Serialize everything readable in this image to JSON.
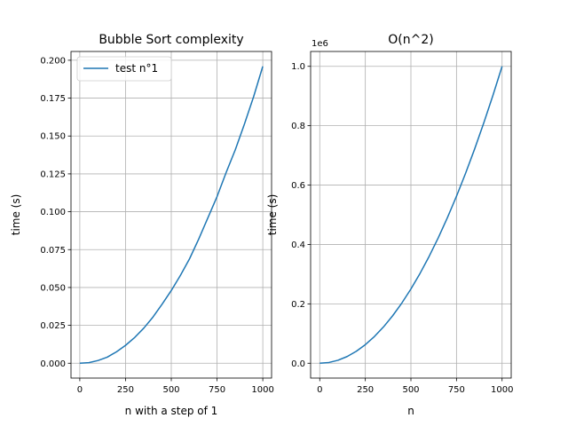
{
  "chart_data": [
    {
      "type": "line",
      "title": "Bubble Sort complexity",
      "xlabel": "n with a step of 1",
      "ylabel": "time (s)",
      "xlim": [
        -48,
        1048
      ],
      "ylim": [
        -0.0098,
        0.2058
      ],
      "xticks": [
        0,
        250,
        500,
        750,
        1000
      ],
      "xtick_labels": [
        "0",
        "250",
        "500",
        "750",
        "1000"
      ],
      "yticks": [
        0,
        0.025,
        0.05,
        0.075,
        0.1,
        0.125,
        0.15,
        0.175,
        0.2
      ],
      "ytick_labels": [
        "0.000",
        "0.025",
        "0.050",
        "0.075",
        "0.100",
        "0.125",
        "0.150",
        "0.175",
        "0.200"
      ],
      "grid": true,
      "legend": "top-left",
      "series": [
        {
          "name": "test n°1",
          "color": "#1f77b4",
          "x": [
            0,
            50,
            100,
            150,
            200,
            250,
            300,
            350,
            400,
            450,
            500,
            550,
            600,
            650,
            700,
            750,
            800,
            850,
            900,
            950,
            1000
          ],
          "y": [
            0,
            0.0004,
            0.0018,
            0.004,
            0.0075,
            0.0118,
            0.017,
            0.0232,
            0.0305,
            0.039,
            0.048,
            0.058,
            0.069,
            0.082,
            0.096,
            0.11,
            0.126,
            0.141,
            0.158,
            0.176,
            0.196
          ]
        }
      ]
    },
    {
      "type": "line",
      "title": "O(n^2)",
      "xlabel": "n",
      "ylabel": "time (s)",
      "offset_label": "1e6",
      "xlim": [
        -50,
        1050
      ],
      "ylim": [
        -0.05,
        1.05
      ],
      "xticks": [
        0,
        250,
        500,
        750,
        1000
      ],
      "xtick_labels": [
        "0",
        "250",
        "500",
        "750",
        "1000"
      ],
      "yticks": [
        0,
        0.2,
        0.4,
        0.6,
        0.8,
        1.0
      ],
      "ytick_labels": [
        "0.0",
        "0.2",
        "0.4",
        "0.6",
        "0.8",
        "1.0"
      ],
      "grid": true,
      "series": [
        {
          "color": "#1f77b4",
          "x": [
            0,
            50,
            100,
            150,
            200,
            250,
            300,
            350,
            400,
            450,
            500,
            550,
            600,
            650,
            700,
            750,
            800,
            850,
            900,
            950,
            1000
          ],
          "y": [
            0,
            0.0025,
            0.01,
            0.0225,
            0.04,
            0.0625,
            0.09,
            0.1225,
            0.16,
            0.2025,
            0.25,
            0.3025,
            0.36,
            0.4225,
            0.49,
            0.5625,
            0.64,
            0.7225,
            0.81,
            0.9025,
            1.0
          ]
        }
      ]
    }
  ]
}
